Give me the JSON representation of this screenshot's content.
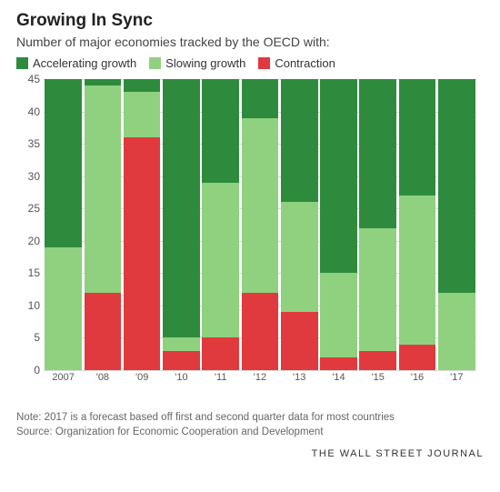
{
  "title": "Growing In Sync",
  "subtitle": "Number of major economies tracked by the OECD with:",
  "legend": [
    {
      "label": "Accelerating growth",
      "color": "#2e8b3d"
    },
    {
      "label": "Slowing growth",
      "color": "#8fd17f"
    },
    {
      "label": "Contraction",
      "color": "#e03a3e"
    }
  ],
  "chart": {
    "type": "stacked-bar",
    "ylim": [
      0,
      45
    ],
    "ytick_step": 5,
    "grid_color": "#d9d9d9",
    "background_color": "#ffffff",
    "label_fontsize": 12,
    "categories": [
      "2007",
      "'08",
      "'09",
      "'10",
      "'11",
      "'12",
      "'13",
      "'14",
      "'15",
      "'16",
      "'17"
    ],
    "series_order": [
      "contraction",
      "slowing",
      "accelerating"
    ],
    "colors": {
      "accelerating": "#2e8b3d",
      "slowing": "#8fd17f",
      "contraction": "#e03a3e"
    },
    "data": [
      {
        "year": "2007",
        "contraction": 0,
        "slowing": 19,
        "accelerating": 26
      },
      {
        "year": "'08",
        "contraction": 12,
        "slowing": 32,
        "accelerating": 1
      },
      {
        "year": "'09",
        "contraction": 36,
        "slowing": 7,
        "accelerating": 2
      },
      {
        "year": "'10",
        "contraction": 3,
        "slowing": 2,
        "accelerating": 40
      },
      {
        "year": "'11",
        "contraction": 5,
        "slowing": 24,
        "accelerating": 16
      },
      {
        "year": "'12",
        "contraction": 12,
        "slowing": 27,
        "accelerating": 6
      },
      {
        "year": "'13",
        "contraction": 9,
        "slowing": 17,
        "accelerating": 19
      },
      {
        "year": "'14",
        "contraction": 2,
        "slowing": 13,
        "accelerating": 30
      },
      {
        "year": "'15",
        "contraction": 3,
        "slowing": 19,
        "accelerating": 23
      },
      {
        "year": "'16",
        "contraction": 4,
        "slowing": 23,
        "accelerating": 18
      },
      {
        "year": "'17",
        "contraction": 0,
        "slowing": 12,
        "accelerating": 33
      }
    ]
  },
  "note_line1": "Note: 2017 is a forecast based off first and second quarter data for most countries",
  "note_line2": "Source: Organization for Economic Cooperation and Development",
  "credit": "THE WALL STREET JOURNAL"
}
